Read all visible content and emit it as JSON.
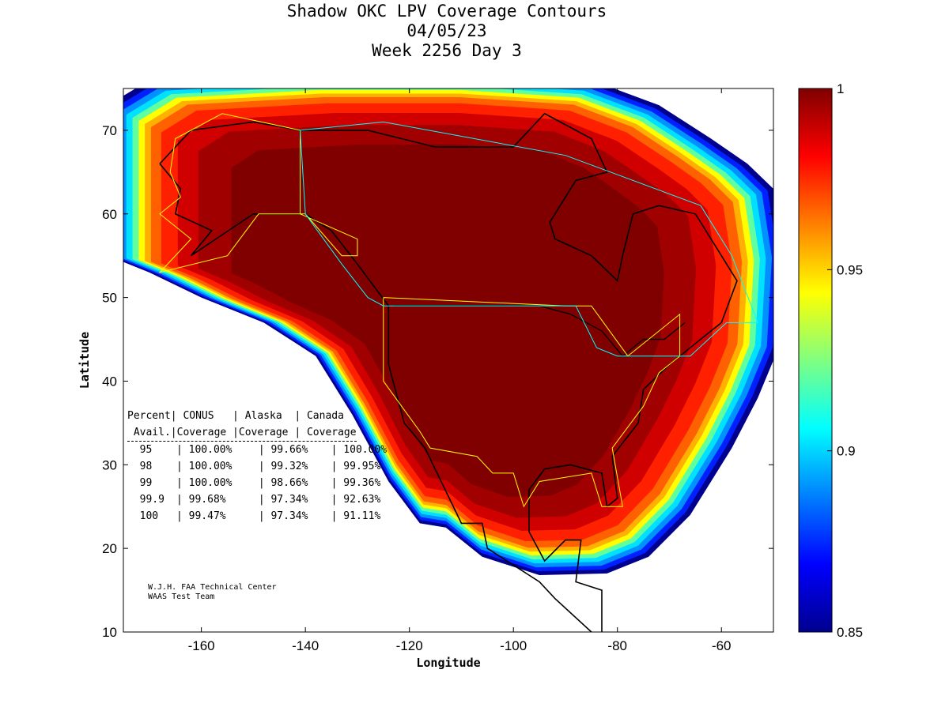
{
  "chart_data": {
    "type": "heatmap",
    "title": [
      "Shadow OKC LPV Coverage Contours",
      "04/05/23",
      "Week 2256 Day 3"
    ],
    "xlabel": "Longitude",
    "ylabel": "Latitude",
    "xlim": [
      -175,
      -50
    ],
    "ylim": [
      10,
      75
    ],
    "xticks": [
      -160,
      -140,
      -120,
      -100,
      -80,
      -60
    ],
    "yticks": [
      10,
      20,
      30,
      40,
      50,
      60,
      70
    ],
    "colorbar": {
      "min": 0.85,
      "max": 1,
      "ticks": [
        "0.85",
        "0.9",
        "0.95",
        "1"
      ]
    },
    "table": {
      "header1": "Percent| CONUS   | Alaska  | Canada",
      "header2": " Avail.|Coverage |Coverage | Coverage",
      "rows": [
        {
          "pct": "95",
          "conus": "100.00%",
          "alaska": "99.66%",
          "canada": "100.00%"
        },
        {
          "pct": "98",
          "conus": "100.00%",
          "alaska": "99.32%",
          "canada": "99.95%"
        },
        {
          "pct": "99",
          "conus": "100.00%",
          "alaska": "98.66%",
          "canada": "99.36%"
        },
        {
          "pct": "99.9",
          "conus": "99.68%",
          "alaska": "97.34%",
          "canada": "92.63%"
        },
        {
          "pct": "100",
          "conus": "99.47%",
          "alaska": "97.34%",
          "canada": "91.11%"
        }
      ]
    },
    "credit": [
      "W.J.H. FAA Technical Center",
      "WAAS Test Team"
    ]
  }
}
